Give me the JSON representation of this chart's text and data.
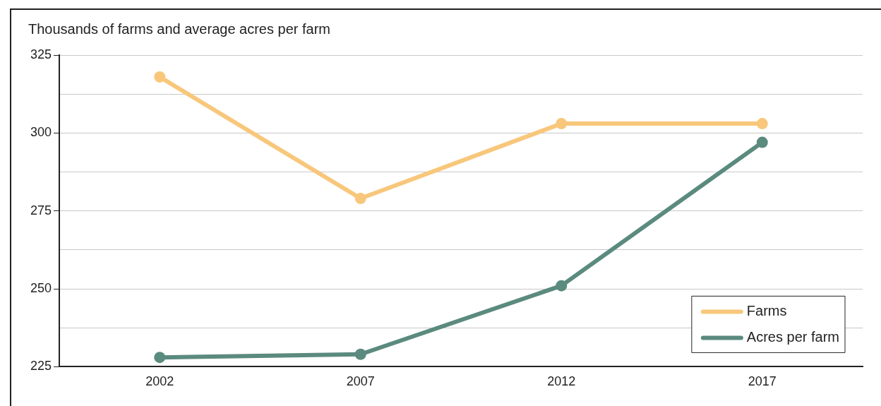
{
  "chart_data": {
    "type": "line",
    "title": "Thousands of farms and average acres per farm",
    "categories": [
      "2002",
      "2007",
      "2012",
      "2017"
    ],
    "series": [
      {
        "name": "Farms",
        "color": "#f8c77b",
        "values": [
          318,
          279,
          303,
          303
        ]
      },
      {
        "name": "Acres per farm",
        "color": "#5b8a7e",
        "values": [
          228,
          229,
          251,
          297
        ]
      }
    ],
    "ylim": [
      225,
      325
    ],
    "yticks": [
      225,
      {
        "value": 237.5,
        "label": null
      },
      250,
      {
        "value": 262.5,
        "label": null
      },
      275,
      {
        "value": 287.5,
        "label": null
      },
      300,
      {
        "value": 312.5,
        "label": null
      },
      325
    ],
    "grid": "y",
    "legend": "bottom right",
    "marker": "circle",
    "line_style": "solid"
  }
}
